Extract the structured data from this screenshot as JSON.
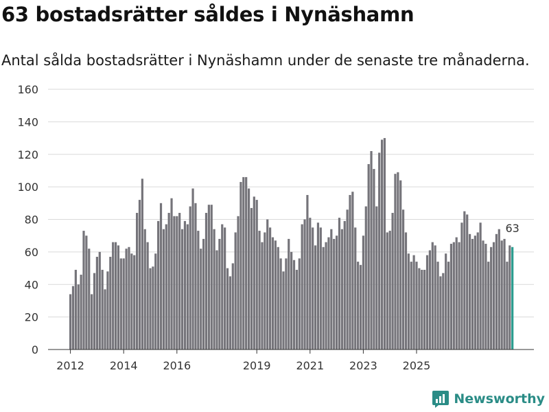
{
  "title": "63 bostadsrätter såldes i Nynäshamn",
  "subtitle": "Antal sålda bostadsrätter i Nynäshamn under de senaste tre månaderna.",
  "brand": "Newsworthy",
  "colors": {
    "bar": "#75747a",
    "highlight": "#2a9d8f",
    "grid": "#d9d9d9",
    "brand": "#2a8c86"
  },
  "chart_data": {
    "type": "bar",
    "title": "63 bostadsrätter såldes i Nynäshamn",
    "xlabel": "",
    "ylabel": "",
    "ylim": [
      0,
      160
    ],
    "y_ticks": [
      0,
      20,
      40,
      60,
      80,
      100,
      120,
      140,
      160
    ],
    "x_tick_labels": [
      {
        "label": "2012",
        "index": 0
      },
      {
        "label": "2014",
        "index": 20
      },
      {
        "label": "2016",
        "index": 40
      },
      {
        "label": "2019",
        "index": 70
      },
      {
        "label": "2021",
        "index": 90
      },
      {
        "label": "2023",
        "index": 110
      },
      {
        "label": "2025",
        "index": 130
      }
    ],
    "values": [
      34,
      39,
      49,
      40,
      46,
      73,
      70,
      62,
      34,
      47,
      57,
      60,
      49,
      37,
      48,
      57,
      66,
      66,
      64,
      56,
      56,
      62,
      63,
      59,
      58,
      84,
      92,
      105,
      74,
      66,
      50,
      51,
      59,
      79,
      90,
      74,
      77,
      84,
      93,
      82,
      82,
      84,
      74,
      79,
      77,
      88,
      99,
      90,
      73,
      62,
      68,
      84,
      89,
      89,
      74,
      61,
      68,
      77,
      75,
      50,
      45,
      53,
      72,
      82,
      103,
      106,
      106,
      99,
      87,
      94,
      92,
      73,
      66,
      72,
      80,
      75,
      69,
      67,
      63,
      56,
      48,
      56,
      68,
      60,
      55,
      49,
      56,
      77,
      80,
      95,
      81,
      75,
      64,
      78,
      75,
      63,
      66,
      69,
      74,
      68,
      70,
      81,
      74,
      79,
      86,
      95,
      97,
      75,
      54,
      52,
      70,
      88,
      114,
      122,
      111,
      88,
      121,
      129,
      130,
      72,
      73,
      84,
      108,
      109,
      104,
      86,
      72,
      59,
      54,
      58,
      54,
      50,
      49,
      49,
      58,
      61,
      66,
      64,
      54,
      45,
      47,
      59,
      54,
      65,
      66,
      69,
      66,
      78,
      85,
      83,
      71,
      68,
      70,
      72,
      78,
      67,
      65,
      54,
      63,
      66,
      71,
      74,
      67,
      68,
      54,
      64,
      63
    ],
    "highlight_last": true,
    "annotation": {
      "text": "63",
      "index": 166
    }
  }
}
